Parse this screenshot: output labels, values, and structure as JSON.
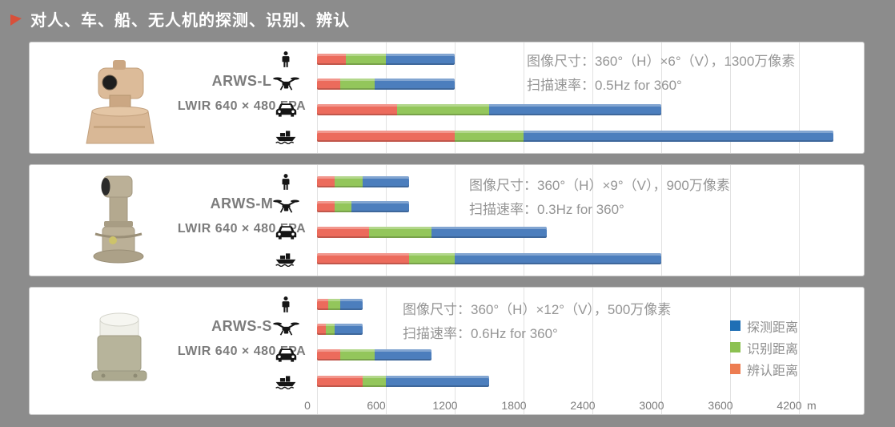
{
  "header": {
    "title": "对人、车、船、无人机的探测、识别、辨认",
    "bullet_icon": "arrow-right-icon"
  },
  "icons": {
    "targets": [
      "person-icon",
      "drone-icon",
      "car-icon",
      "boat-icon"
    ]
  },
  "colors": {
    "detect": "#4C7EBD",
    "recognize": "#93C65B",
    "identify": "#EC6B5C",
    "legend_detect": "#1F6FB5",
    "legend_recognize": "#8CC152",
    "legend_identify": "#ED7D52",
    "page_bg": "#8C8C8C",
    "title_text": "#FFFFFF"
  },
  "legend": [
    {
      "label": "探测距离",
      "color": "#1F6FB5"
    },
    {
      "label": "识别距离",
      "color": "#8CC152"
    },
    {
      "label": "辨认距离",
      "color": "#ED7D52"
    }
  ],
  "axis": {
    "ticks": [
      0,
      600,
      1200,
      1800,
      2400,
      3000,
      3600,
      4200
    ],
    "unit": "m",
    "max": 4200
  },
  "panels": [
    {
      "model": "ARWS-L",
      "sensor": "LWIR 640 × 480 FPA",
      "info_line1": "图像尺寸：360°（H）×6°（V），1300万像素",
      "info_line2": "扫描速率：0.5Hz for 360°"
    },
    {
      "model": "ARWS-M",
      "sensor": "LWIR 640 × 480 FPA",
      "info_line1": "图像尺寸：360°（H）×9°（V），900万像素",
      "info_line2": "扫描速率：0.3Hz for 360°"
    },
    {
      "model": "ARWS-S",
      "sensor": "LWIR 640 × 480 FPA",
      "info_line1": "图像尺寸：360°（H）×12°（V），500万像素",
      "info_line2": "扫描速率：0.6Hz for 360°"
    }
  ],
  "chart_data": [
    {
      "type": "bar",
      "title": "ARWS-L",
      "orientation": "horizontal",
      "categories": [
        "person",
        "drone",
        "vehicle",
        "boat"
      ],
      "series": [
        {
          "name": "辨认距离",
          "values": [
            250,
            200,
            700,
            1200
          ]
        },
        {
          "name": "识别距离",
          "values": [
            600,
            500,
            1500,
            1800
          ]
        },
        {
          "name": "探测距离",
          "values": [
            1200,
            1200,
            3000,
            4500
          ]
        }
      ],
      "xlim": [
        0,
        4200
      ],
      "xunit": "m",
      "note": "segments overlaid, total bar length equals 探测距离"
    },
    {
      "type": "bar",
      "title": "ARWS-M",
      "orientation": "horizontal",
      "categories": [
        "person",
        "drone",
        "vehicle",
        "boat"
      ],
      "series": [
        {
          "name": "辨认距离",
          "values": [
            150,
            150,
            450,
            800
          ]
        },
        {
          "name": "识别距离",
          "values": [
            400,
            300,
            1000,
            1200
          ]
        },
        {
          "name": "探测距离",
          "values": [
            800,
            800,
            2000,
            3000
          ]
        }
      ],
      "xlim": [
        0,
        4200
      ],
      "xunit": "m",
      "note": "segments overlaid, total bar length equals 探测距离"
    },
    {
      "type": "bar",
      "title": "ARWS-S",
      "orientation": "horizontal",
      "categories": [
        "person",
        "drone",
        "vehicle",
        "boat"
      ],
      "series": [
        {
          "name": "辨认距离",
          "values": [
            100,
            75,
            200,
            400
          ]
        },
        {
          "name": "识别距离",
          "values": [
            200,
            150,
            500,
            600
          ]
        },
        {
          "name": "探测距离",
          "values": [
            400,
            400,
            1000,
            1500
          ]
        }
      ],
      "xlim": [
        0,
        4200
      ],
      "xunit": "m",
      "note": "segments overlaid, total bar length equals 探测距离"
    }
  ]
}
